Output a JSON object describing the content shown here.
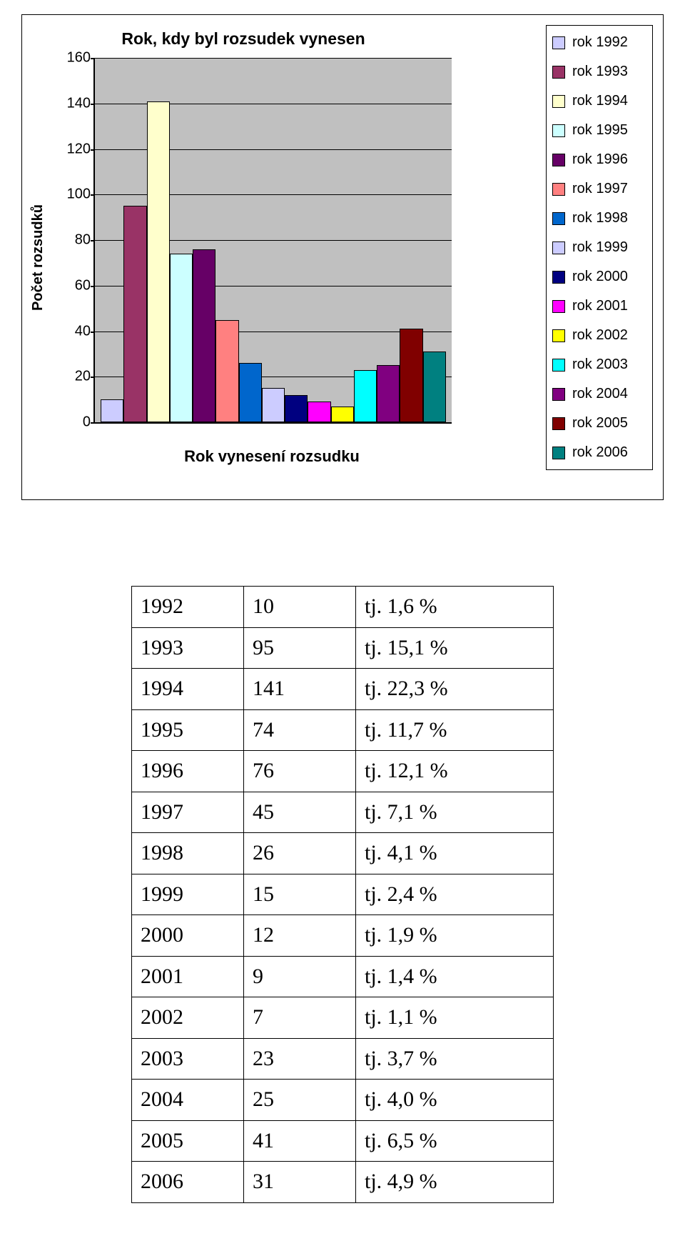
{
  "chart": {
    "type": "bar",
    "title": "Rok, kdy byl rozsudek vynesen",
    "y_axis_title": "Počet rozsudků",
    "x_axis_caption": "Rok vynesení rozsudku",
    "background_color": "#c0c0c0",
    "frame_color": "#000000",
    "grid_color": "#000000",
    "ylim": [
      0,
      160
    ],
    "ytick_step": 20,
    "yticks": [
      0,
      20,
      40,
      60,
      80,
      100,
      120,
      140,
      160
    ],
    "title_fontsize": 23,
    "axis_title_fontsize": 20,
    "tick_fontsize": 20,
    "series": [
      {
        "label": "rok 1992",
        "value": 10,
        "color": "#ccccff"
      },
      {
        "label": "rok 1993",
        "value": 95,
        "color": "#993366"
      },
      {
        "label": "rok 1994",
        "value": 141,
        "color": "#ffffcc"
      },
      {
        "label": "rok 1995",
        "value": 74,
        "color": "#ccffff"
      },
      {
        "label": "rok 1996",
        "value": 76,
        "color": "#660066"
      },
      {
        "label": "rok 1997",
        "value": 45,
        "color": "#ff8080"
      },
      {
        "label": "rok 1998",
        "value": 26,
        "color": "#0066cc"
      },
      {
        "label": "rok 1999",
        "value": 15,
        "color": "#ccccff"
      },
      {
        "label": "rok 2000",
        "value": 12,
        "color": "#000080"
      },
      {
        "label": "rok 2001",
        "value": 9,
        "color": "#ff00ff"
      },
      {
        "label": "rok 2002",
        "value": 7,
        "color": "#ffff00"
      },
      {
        "label": "rok 2003",
        "value": 23,
        "color": "#00ffff"
      },
      {
        "label": "rok 2004",
        "value": 25,
        "color": "#800080"
      },
      {
        "label": "rok 2005",
        "value": 41,
        "color": "#800000"
      },
      {
        "label": "rok 2006",
        "value": 31,
        "color": "#008080"
      }
    ],
    "legend": {
      "position": "right",
      "fontsize": 20,
      "border_color": "#000000",
      "background_color": "#ffffff"
    }
  },
  "table": {
    "font_family": "Times New Roman",
    "fontsize": 30,
    "border_color": "#000000",
    "columns": [
      "year",
      "count",
      "percent_label"
    ],
    "rows": [
      {
        "year": "1992",
        "count": "10",
        "pct": "tj. 1,6 %"
      },
      {
        "year": "1993",
        "count": "95",
        "pct": "tj. 15,1 %"
      },
      {
        "year": "1994",
        "count": "141",
        "pct": "tj. 22,3 %"
      },
      {
        "year": "1995",
        "count": "74",
        "pct": "tj. 11,7 %"
      },
      {
        "year": "1996",
        "count": "76",
        "pct": "tj. 12,1 %"
      },
      {
        "year": "1997",
        "count": "45",
        "pct": "tj. 7,1 %"
      },
      {
        "year": "1998",
        "count": "26",
        "pct": "tj. 4,1 %"
      },
      {
        "year": "1999",
        "count": "15",
        "pct": "tj. 2,4 %"
      },
      {
        "year": "2000",
        "count": "12",
        "pct": "tj. 1,9 %"
      },
      {
        "year": "2001",
        "count": " 9",
        "pct": "tj. 1,4 %"
      },
      {
        "year": "2002",
        "count": " 7",
        "pct": "tj. 1,1 %"
      },
      {
        "year": "2003",
        "count": "23",
        "pct": "tj. 3,7 %"
      },
      {
        "year": "2004",
        "count": "25",
        "pct": "tj. 4,0 %"
      },
      {
        "year": "2005",
        "count": "41",
        "pct": "tj. 6,5 %"
      },
      {
        "year": "2006",
        "count": "31",
        "pct": "tj. 4,9 %"
      }
    ]
  }
}
